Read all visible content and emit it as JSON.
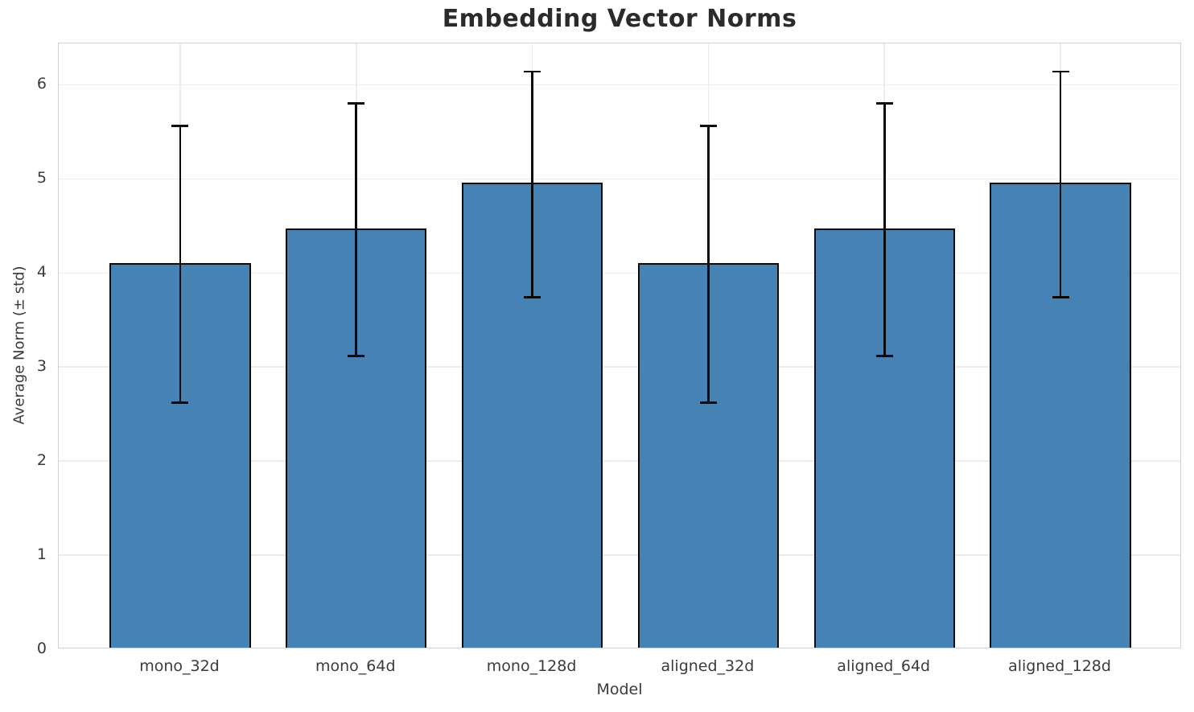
{
  "chart_data": {
    "type": "bar",
    "title": "Embedding Vector Norms",
    "xlabel": "Model",
    "ylabel": "Average Norm (± std)",
    "categories": [
      "mono_32d",
      "mono_64d",
      "mono_128d",
      "aligned_32d",
      "aligned_64d",
      "aligned_128d"
    ],
    "series": [
      {
        "name": "Average Norm",
        "values": [
          4.09,
          4.46,
          4.94,
          4.09,
          4.46,
          4.94
        ],
        "errors": [
          1.47,
          1.34,
          1.2,
          1.47,
          1.34,
          1.2
        ]
      }
    ],
    "error_bars": {
      "lower": [
        2.62,
        3.12,
        3.74,
        2.62,
        3.12,
        3.74
      ],
      "upper": [
        5.56,
        5.8,
        6.14,
        5.56,
        5.8,
        6.14
      ]
    },
    "yticks": [
      0,
      1,
      2,
      3,
      4,
      5,
      6
    ],
    "ylim": [
      0,
      6.44
    ],
    "grid": true,
    "legend_position": "none"
  },
  "colors": {
    "bar_fill": "#4682b4",
    "bar_edge": "#0b0b0b",
    "error_bar": "#0b0b0b",
    "gridline": "#ececec",
    "spine": "#d2d2d2",
    "title_text": "#2b2b2b",
    "axis_text": "#3b3b3b",
    "background": "#ffffff"
  }
}
